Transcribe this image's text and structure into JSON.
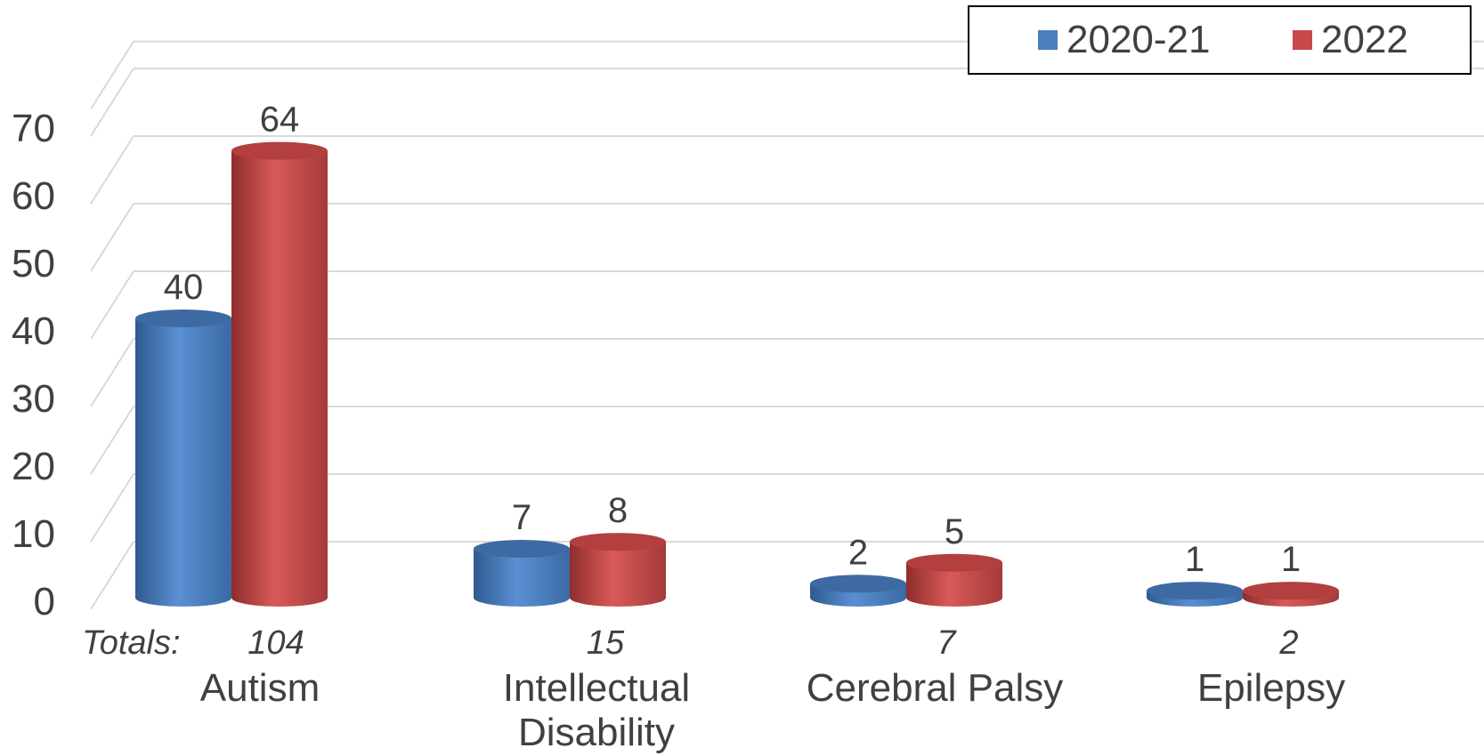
{
  "chart_data": {
    "type": "bar",
    "categories": [
      "Autism",
      "Intellectual\nDisability",
      "Cerebral Palsy",
      "Epilepsy"
    ],
    "series": [
      {
        "name": "2020-21",
        "values": [
          40,
          7,
          2,
          1
        ]
      },
      {
        "name": "2022",
        "values": [
          64,
          8,
          5,
          1
        ]
      }
    ],
    "totals_label": "Totals:",
    "totals": [
      104,
      15,
      7,
      2
    ],
    "yticks": [
      0,
      10,
      20,
      30,
      40,
      50,
      60,
      70
    ],
    "ylim": [
      0,
      74
    ],
    "grid": true,
    "legend": "top-right",
    "style": "3d-cylinder",
    "colors": {
      "2020-21": "#4a7ebf",
      "2022": "#c8484a"
    }
  }
}
